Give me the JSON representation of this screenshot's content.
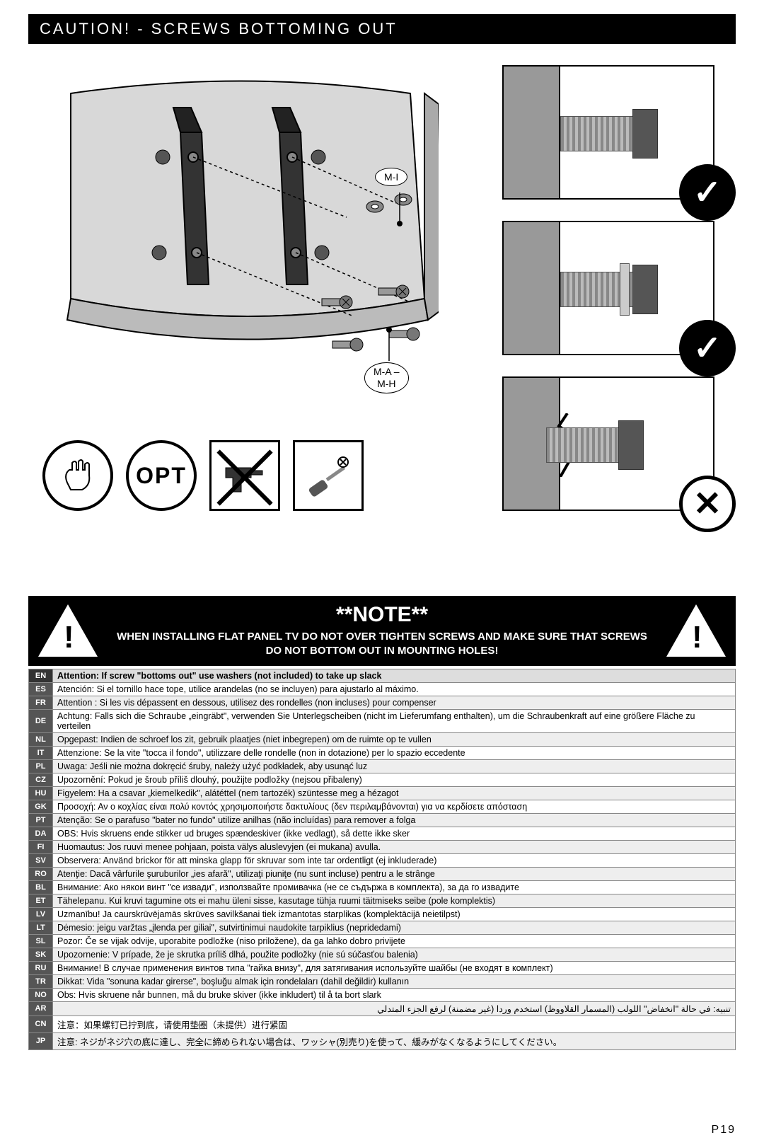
{
  "title": "CAUTION! - SCREWS BOTTOMING OUT",
  "callouts": {
    "top": "M-I",
    "bottom": "M-A –\nM-H"
  },
  "icons": {
    "hand": "hand-tighten-icon",
    "opt_label": "OPT",
    "drill": "power-drill-icon",
    "screwdriver": "screwdriver-icon"
  },
  "screw_states": [
    {
      "status": "ok",
      "label": "✓",
      "washer": false,
      "damage": false
    },
    {
      "status": "ok",
      "label": "✓",
      "washer": true,
      "damage": false
    },
    {
      "status": "bad",
      "label": "✕",
      "washer": false,
      "damage": true
    }
  ],
  "note": {
    "heading": "**NOTE**",
    "body": "WHEN INSTALLING FLAT PANEL TV DO NOT OVER TIGHTEN SCREWS AND MAKE SURE THAT SCREWS DO NOT BOTTOM OUT IN MOUNTING HOLES!"
  },
  "translations": [
    {
      "code": "EN",
      "text": "Attention: If screw \"bottoms out\" use washers (not included) to take up slack",
      "header": true
    },
    {
      "code": "ES",
      "text": "Atención: Si el tornillo hace tope, utilice arandelas (no se incluyen) para ajustarlo al máximo."
    },
    {
      "code": "FR",
      "text": "Attention : Si les vis dépassent en dessous, utilisez des rondelles (non incluses) pour compenser"
    },
    {
      "code": "DE",
      "text": "Achtung: Falls sich die Schraube „eingräbt\", verwenden Sie Unterlegscheiben (nicht im Lieferumfang enthalten), um die Schraubenkraft auf eine größere Fläche zu verteilen"
    },
    {
      "code": "NL",
      "text": "Opgepast: Indien de schroef los zit, gebruik plaatjes (niet inbegrepen) om de ruimte op te vullen"
    },
    {
      "code": "IT",
      "text": "Attenzione: Se la vite \"tocca il fondo\", utilizzare delle rondelle (non in dotazione) per lo spazio eccedente"
    },
    {
      "code": "PL",
      "text": "Uwaga: Jeśli nie można dokręcić śruby, należy użyć podkładek, aby usunąć luz"
    },
    {
      "code": "CZ",
      "text": "Upozornění: Pokud je šroub příliš dlouhý, použijte podložky (nejsou přibaleny)"
    },
    {
      "code": "HU",
      "text": "Figyelem: Ha a csavar „kiemelkedik\", alátéttel (nem tartozék) szüntesse meg a hézagot"
    },
    {
      "code": "GK",
      "text": "Προσοχή: Αν ο κοχλίας είναι πολύ κοντός χρησιμοποιήστε δακτυλίους (δεν περιλαμβάνονται) για να κερδίσετε απόσταση"
    },
    {
      "code": "PT",
      "text": "Atenção: Se o parafuso \"bater no fundo\" utilize anilhas (não incluídas) para remover a folga"
    },
    {
      "code": "DA",
      "text": "OBS: Hvis skruens ende stikker ud bruges spændeskiver (ikke vedlagt), så dette ikke sker"
    },
    {
      "code": "FI",
      "text": "Huomautus: Jos ruuvi menee pohjaan, poista välys aluslevyjen (ei mukana) avulla."
    },
    {
      "code": "SV",
      "text": "Observera: Använd brickor för att minska glapp för skruvar som inte tar ordentligt (ej inkluderade)"
    },
    {
      "code": "RO",
      "text": "Atenţie: Dacă vârfurile şuruburilor „ies afară\", utilizaţi piuniţe (nu sunt incluse) pentru a le strânge"
    },
    {
      "code": "BL",
      "text": "Внимание: Ако някои винт \"се извади\", използвайте промивачка (не се съдържа в комплекта), за да го извадите"
    },
    {
      "code": "ET",
      "text": "Tähelepanu. Kui kruvi tagumine ots ei mahu üleni sisse, kasutage tühja ruumi täitmiseks seibe (pole komplektis)"
    },
    {
      "code": "LV",
      "text": "Uzmanību! Ja caurskrūvējamās skrūves savilkšanai tiek izmantotas starplikas (komplektācijā neietilpst)"
    },
    {
      "code": "LT",
      "text": "Dėmesio: jeigu varžtas „įlenda per giliai\", sutvirtinimui naudokite tarpiklius (nepridedami)"
    },
    {
      "code": "SL",
      "text": "Pozor: Če se vijak odvije, uporabite podložke (niso priložene), da ga lahko dobro privijete"
    },
    {
      "code": "SK",
      "text": "Upozornenie: V prípade, že je skrutka príliš dlhá, použite podložky (nie sú súčasťou balenia)"
    },
    {
      "code": "RU",
      "text": "Внимание! В случае применения винтов типа \"гайка внизу\", для затягивания используйте шайбы (не входят в комплект)"
    },
    {
      "code": "TR",
      "text": "Dikkat: Vida \"sonuna kadar girerse\", boşluğu almak için rondelaları (dahil değildir) kullanın"
    },
    {
      "code": "NO",
      "text": "Obs: Hvis skruene når bunnen, må du bruke skiver (ikke inkludert) til å ta bort slark"
    },
    {
      "code": "AR",
      "text": "تنبيه: في حالة \"انخفاض\" اللولب (المسمار القلاووظ) استخدم وردا (غير مضمنة) لرفع الجزء المتدلي"
    },
    {
      "code": "CN",
      "text": "注意：如果螺钉已拧到底，请使用垫圈（未提供）进行紧固"
    },
    {
      "code": "JP",
      "text": "注意: ネジがネジ穴の底に達し、完全に締められない場合は、ワッシャ(別売り)を使って、緩みがなくなるようにしてください。"
    }
  ],
  "page_number": "P19",
  "colors": {
    "black": "#000000",
    "grey_panel": "#999999",
    "light_row": "#eeeeee",
    "code_bg": "#555555"
  }
}
